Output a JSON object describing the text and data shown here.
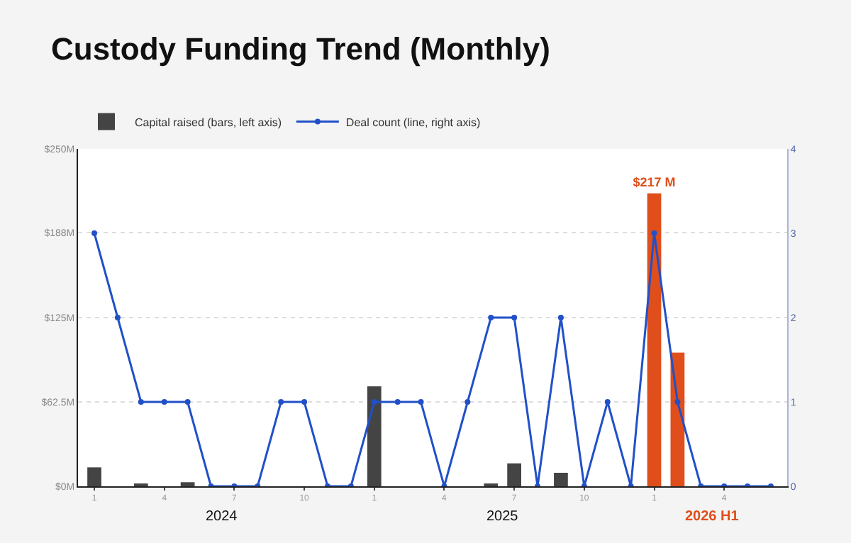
{
  "chart_data": {
    "type": "bar",
    "title": "Custody Funding Trend (Monthly)",
    "categories": [
      "1",
      null,
      null,
      "4",
      null,
      null,
      "7",
      null,
      null,
      "10",
      null,
      null,
      "1",
      null,
      null,
      "4",
      null,
      null,
      "7",
      null,
      null,
      "10",
      null,
      null,
      "1",
      null,
      null,
      "4",
      null,
      null
    ],
    "series": [
      {
        "name": "Capital raised (bars, left axis)",
        "colors": [
          "#444444",
          "#444444",
          "#444444",
          "#444444",
          "#444444",
          "#444444",
          "#444444",
          "#444444",
          "#444444",
          "#444444",
          "#444444",
          "#444444",
          "#444444",
          "#444444",
          "#444444",
          "#444444",
          "#444444",
          "#444444",
          "#444444",
          "#444444",
          "#444444",
          "#444444",
          "#444444",
          "#444444",
          "#e04e1b",
          "#e04e1b",
          "#e04e1b",
          "#e04e1b",
          "#e04e1b",
          "#e04e1b"
        ],
        "values": [
          14,
          0,
          2,
          0,
          3,
          0,
          0,
          0,
          0,
          0,
          0,
          0,
          74,
          0,
          0,
          0,
          0,
          2,
          17,
          0,
          10,
          0,
          0,
          0,
          217,
          99,
          0,
          0,
          0,
          0
        ],
        "value_labels": [
          null,
          null,
          null,
          null,
          null,
          null,
          null,
          null,
          null,
          null,
          null,
          null,
          null,
          null,
          null,
          null,
          null,
          null,
          null,
          null,
          null,
          null,
          null,
          null,
          "$217 M",
          null,
          null,
          null,
          null,
          null
        ]
      },
      {
        "name": "Deal count (line, right axis)",
        "type": "line",
        "axis": "y2",
        "color": "#2150c8",
        "values": [
          3,
          2,
          1,
          1,
          1,
          0,
          0,
          0,
          1,
          1,
          0,
          0,
          1,
          1,
          1,
          0,
          1,
          2,
          2,
          0,
          2,
          0,
          1,
          0,
          3,
          1,
          0,
          0,
          0,
          0
        ]
      }
    ],
    "ylim": [
      0,
      250
    ],
    "yticks": [
      {
        "value": 0,
        "label": "$0M"
      },
      {
        "value": 62.5,
        "label": "$62.5M"
      },
      {
        "value": 125,
        "label": "$125M"
      },
      {
        "value": 188,
        "label": "$188M"
      },
      {
        "value": 250,
        "label": "$250M"
      }
    ],
    "y2lim": [
      0,
      4
    ],
    "y2ticks": [
      0,
      1,
      2,
      3,
      4
    ],
    "annotations": [
      "2024",
      "2025",
      "2026 H1"
    ],
    "grid": "y",
    "legend": "top left",
    "marker": "circle",
    "line_style": "solid"
  }
}
